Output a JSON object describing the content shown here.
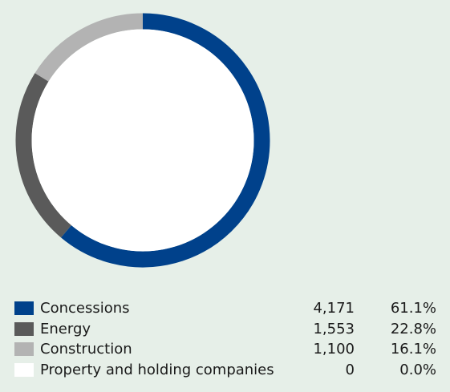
{
  "chart_data": {
    "type": "pie",
    "style": "donut",
    "categories": [
      "Concessions",
      "Energy",
      "Construction",
      "Property and holding companies"
    ],
    "values": [
      4171,
      1553,
      1100,
      0
    ],
    "percentages": [
      "61.1%",
      "22.8%",
      "16.1%",
      "0.0%"
    ],
    "colors": [
      "#00418b",
      "#5a5a5a",
      "#b3b3b3",
      "#ffffff"
    ],
    "legend_position": "bottom"
  },
  "legend": {
    "rows": [
      {
        "label": "Concessions",
        "value": "4,171",
        "pct": "61.1%",
        "color": "#00418b"
      },
      {
        "label": "Energy",
        "value": "1,553",
        "pct": "22.8%",
        "color": "#5a5a5a"
      },
      {
        "label": "Construction",
        "value": "1,100",
        "pct": "16.1%",
        "color": "#b3b3b3"
      },
      {
        "label": "Property and holding companies",
        "value": "0",
        "pct": "0.0%",
        "color": "#ffffff"
      }
    ]
  }
}
